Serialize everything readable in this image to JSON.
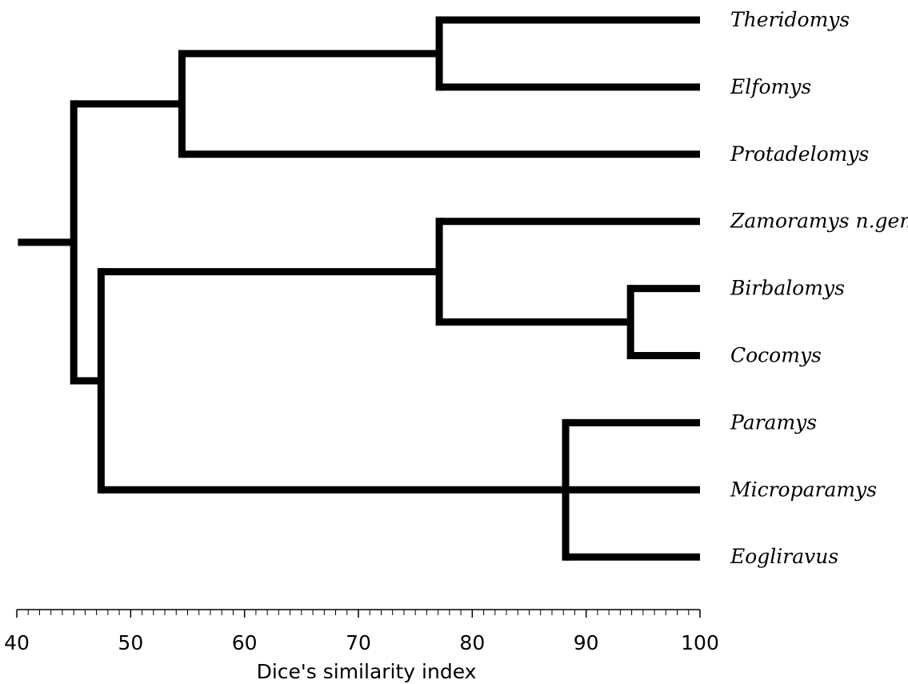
{
  "chart_data": {
    "type": "dendrogram",
    "xlabel": "Dice's similarity index",
    "xlim": [
      40,
      100
    ],
    "major_ticks": [
      40,
      50,
      60,
      70,
      80,
      90,
      100
    ],
    "minor_tick_step": 1,
    "root_stem_from": 40.1,
    "taxa": [
      "Theridomys",
      "Elfomys",
      "Protadelomys",
      "Zamoramys n.gen",
      "Birbalomys",
      "Cocomys",
      "Paramys",
      "Microparamys",
      "Eogliravus"
    ],
    "tree": {
      "similarity": 45,
      "children": [
        {
          "similarity": 54.5,
          "children": [
            {
              "similarity": 77.1,
              "children": [
                {
                  "taxon": 0
                },
                {
                  "taxon": 1
                }
              ]
            },
            {
              "taxon": 2
            }
          ]
        },
        {
          "similarity": 47.4,
          "children": [
            {
              "similarity": 77.1,
              "children": [
                {
                  "taxon": 3
                },
                {
                  "similarity": 93.9,
                  "children": [
                    {
                      "taxon": 4
                    },
                    {
                      "taxon": 5
                    }
                  ]
                }
              ]
            },
            {
              "similarity": 88.2,
              "children": [
                {
                  "taxon": 6
                },
                {
                  "taxon": 7
                },
                {
                  "taxon": 8
                }
              ]
            }
          ]
        }
      ]
    }
  }
}
